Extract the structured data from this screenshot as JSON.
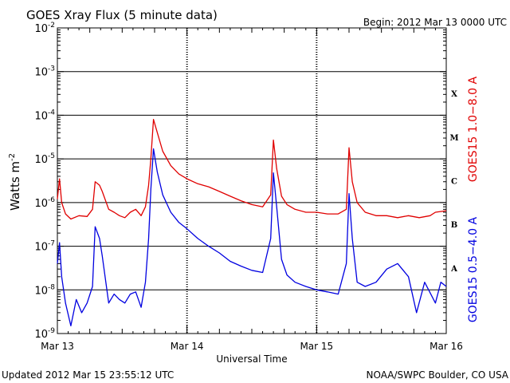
{
  "header": {
    "title": "GOES Xray Flux (5 minute data)",
    "begin": "Begin:  2012 Mar 13 0000 UTC"
  },
  "footer": {
    "updated": "Updated 2012 Mar 15 23:55:12 UTC",
    "credit": "NOAA/SWPC Boulder, CO USA"
  },
  "colors": {
    "long": "#e00000",
    "short": "#0000e0",
    "grid": "#000000"
  },
  "chart_data": {
    "type": "line",
    "title": "GOES Xray Flux (5 minute data)",
    "xlabel": "Universal Time",
    "ylabel_main": "Watts m",
    "ylabel_sup": "-2",
    "yscale": "log",
    "ylim": [
      1e-09,
      0.01
    ],
    "xlim": [
      0,
      72
    ],
    "x_unit": "hours since 2012 Mar 13 0000 UTC",
    "xticks": [
      {
        "x": 0,
        "label": "Mar 13"
      },
      {
        "x": 24,
        "label": "Mar 14"
      },
      {
        "x": 48,
        "label": "Mar 15"
      },
      {
        "x": 72,
        "label": "Mar 16"
      }
    ],
    "yticks": [
      {
        "exp": -9
      },
      {
        "exp": -8
      },
      {
        "exp": -7
      },
      {
        "exp": -6
      },
      {
        "exp": -5
      },
      {
        "exp": -4
      },
      {
        "exp": -3
      },
      {
        "exp": -2
      }
    ],
    "ytick_base": "10",
    "flare_classes": [
      {
        "label": "A",
        "exp": -7.5
      },
      {
        "label": "B",
        "exp": -6.5
      },
      {
        "label": "C",
        "exp": -5.5
      },
      {
        "label": "M",
        "exp": -4.5
      },
      {
        "label": "X",
        "exp": -3.5
      }
    ],
    "grid_exps": [
      -8,
      -7,
      -6,
      -5,
      -4,
      -3
    ],
    "series": [
      {
        "name": "GOES15 1.0−8.0 A",
        "color": "#e00000",
        "points": [
          [
            0,
            1.2e-06
          ],
          [
            0.4,
            3.5e-06
          ],
          [
            0.8,
            1e-06
          ],
          [
            1.5,
            5.5e-07
          ],
          [
            2.5,
            4.2e-07
          ],
          [
            4,
            5e-07
          ],
          [
            5.5,
            4.8e-07
          ],
          [
            6.5,
            7e-07
          ],
          [
            7.0,
            3e-06
          ],
          [
            7.8,
            2.5e-06
          ],
          [
            8.3,
            1.8e-06
          ],
          [
            9.5,
            7e-07
          ],
          [
            10.5,
            6e-07
          ],
          [
            11.5,
            5e-07
          ],
          [
            12.5,
            4.5e-07
          ],
          [
            13.5,
            6e-07
          ],
          [
            14.5,
            7e-07
          ],
          [
            15.5,
            5e-07
          ],
          [
            16.3,
            8e-07
          ],
          [
            16.9,
            2.5e-06
          ],
          [
            17.3,
            1e-05
          ],
          [
            17.8,
            8e-05
          ],
          [
            18.5,
            4e-05
          ],
          [
            19.5,
            1.5e-05
          ],
          [
            21,
            7e-06
          ],
          [
            22.5,
            4.5e-06
          ],
          [
            24,
            3.5e-06
          ],
          [
            26,
            2.7e-06
          ],
          [
            28,
            2.3e-06
          ],
          [
            30,
            1.8e-06
          ],
          [
            32,
            1.4e-06
          ],
          [
            34,
            1.1e-06
          ],
          [
            36,
            9e-07
          ],
          [
            38,
            8e-07
          ],
          [
            39.5,
            1.5e-06
          ],
          [
            40.0,
            2.7e-05
          ],
          [
            40.6,
            6e-06
          ],
          [
            41.5,
            1.4e-06
          ],
          [
            42.5,
            9e-07
          ],
          [
            44,
            7e-07
          ],
          [
            46,
            6e-07
          ],
          [
            48,
            6e-07
          ],
          [
            50,
            5.5e-07
          ],
          [
            52,
            5.5e-07
          ],
          [
            53.5,
            7e-07
          ],
          [
            54.0,
            1.8e-05
          ],
          [
            54.6,
            3e-06
          ],
          [
            55.5,
            1e-06
          ],
          [
            57,
            6e-07
          ],
          [
            59,
            5e-07
          ],
          [
            61,
            5e-07
          ],
          [
            63,
            4.5e-07
          ],
          [
            65,
            5e-07
          ],
          [
            67,
            4.5e-07
          ],
          [
            69,
            5e-07
          ],
          [
            70,
            6e-07
          ],
          [
            72,
            6.5e-07
          ]
        ]
      },
      {
        "name": "GOES15 0.5−4.0 A",
        "color": "#0000e0",
        "points": [
          [
            0,
            4e-08
          ],
          [
            0.4,
            1.2e-07
          ],
          [
            0.8,
            2e-08
          ],
          [
            1.5,
            5e-09
          ],
          [
            2.5,
            1.5e-09
          ],
          [
            3.5,
            6e-09
          ],
          [
            4.5,
            3e-09
          ],
          [
            5.5,
            5e-09
          ],
          [
            6.5,
            1.2e-08
          ],
          [
            7.0,
            2.8e-07
          ],
          [
            7.8,
            1.5e-07
          ],
          [
            8.3,
            6e-08
          ],
          [
            9.5,
            5e-09
          ],
          [
            10.5,
            8e-09
          ],
          [
            11.5,
            6e-09
          ],
          [
            12.5,
            5e-09
          ],
          [
            13.5,
            8e-09
          ],
          [
            14.5,
            9e-09
          ],
          [
            15.5,
            4e-09
          ],
          [
            16.3,
            1.5e-08
          ],
          [
            16.9,
            1.5e-07
          ],
          [
            17.3,
            2e-06
          ],
          [
            17.8,
            1.7e-05
          ],
          [
            18.5,
            5e-06
          ],
          [
            19.5,
            1.5e-06
          ],
          [
            21,
            6e-07
          ],
          [
            22.5,
            3.5e-07
          ],
          [
            24,
            2.5e-07
          ],
          [
            26,
            1.5e-07
          ],
          [
            28,
            1e-07
          ],
          [
            30,
            7e-08
          ],
          [
            32,
            4.5e-08
          ],
          [
            34,
            3.5e-08
          ],
          [
            36,
            2.8e-08
          ],
          [
            38,
            2.5e-08
          ],
          [
            39.5,
            1.5e-07
          ],
          [
            40.0,
            4.8e-06
          ],
          [
            40.6,
            8e-07
          ],
          [
            41.5,
            5e-08
          ],
          [
            42.5,
            2.2e-08
          ],
          [
            44,
            1.5e-08
          ],
          [
            46,
            1.2e-08
          ],
          [
            48,
            1e-08
          ],
          [
            50,
            9e-09
          ],
          [
            52,
            8e-09
          ],
          [
            53.5,
            4e-08
          ],
          [
            54.0,
            1.6e-06
          ],
          [
            54.6,
            1.5e-07
          ],
          [
            55.5,
            1.5e-08
          ],
          [
            57,
            1.2e-08
          ],
          [
            59,
            1.5e-08
          ],
          [
            61,
            3e-08
          ],
          [
            63,
            4e-08
          ],
          [
            65,
            2e-08
          ],
          [
            66.5,
            3e-09
          ],
          [
            68,
            1.5e-08
          ],
          [
            70,
            5e-09
          ],
          [
            71,
            1.5e-08
          ],
          [
            72,
            1.2e-08
          ]
        ]
      }
    ],
    "grid": "horizontal lines at each decade, dotted vertical lines at day boundaries"
  }
}
